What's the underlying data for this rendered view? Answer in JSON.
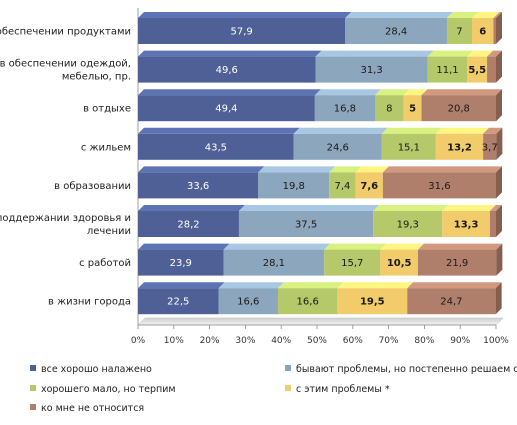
{
  "chart_data": {
    "type": "bar",
    "orientation": "horizontal",
    "stacked": "percent",
    "categories": [
      [
        "в обеспечении продуктами"
      ],
      [
        "в обеспечении одеждой,",
        "мебелью, пр."
      ],
      [
        "в отдыхе"
      ],
      [
        "с жильем"
      ],
      [
        "в образовании"
      ],
      [
        "в поддержании здоровья и",
        "лечении"
      ],
      [
        "с работой"
      ],
      [
        "в жизни города"
      ]
    ],
    "series": [
      {
        "name": "все хорошо налажено",
        "color": "#4e6096",
        "values": [
          57.9,
          49.6,
          49.4,
          43.5,
          33.6,
          28.2,
          23.9,
          22.5
        ],
        "labels": [
          "57,9",
          "49,6",
          "49,4",
          "43,5",
          "33,6",
          "28,2",
          "23,9",
          "22,5"
        ]
      },
      {
        "name": "бывают проблемы, но постепенно решаем сами",
        "color": "#8ca6bd",
        "values": [
          28.4,
          31.3,
          16.8,
          24.6,
          19.8,
          37.5,
          28.1,
          16.6
        ],
        "labels": [
          "28,4",
          "31,3",
          "16,8",
          "24,6",
          "19,8",
          "37,5",
          "28,1",
          "16,6"
        ]
      },
      {
        "name": "хорошего мало, но терпим",
        "color": "#b5c96a",
        "values": [
          7,
          11.1,
          8,
          15.1,
          7.4,
          19.3,
          15.7,
          16.6
        ],
        "labels": [
          "7",
          "11,1",
          "8",
          "15,1",
          "7,4",
          "19,3",
          "15,7",
          "16,6"
        ]
      },
      {
        "name": "с этим проблемы *",
        "color": "#f2cc6b",
        "values": [
          6,
          5.5,
          5,
          13.2,
          7.6,
          13.3,
          10.5,
          19.5
        ],
        "labels": [
          "6",
          "5,5",
          "5",
          "13,2",
          "7,6",
          "13,3",
          "10,5",
          "19,5"
        ]
      },
      {
        "name": "ко мне не относится",
        "color": "#b07f6b",
        "values": [
          0.7,
          2.5,
          20.8,
          3.7,
          31.6,
          1.7,
          21.9,
          24.7
        ],
        "labels": [
          "",
          "",
          "20,8",
          "3,7",
          "31,6",
          "",
          "21,9",
          "24,7"
        ]
      }
    ],
    "xlim": [
      0,
      100
    ],
    "x_ticks": [
      "0%",
      "10%",
      "20%",
      "30%",
      "40%",
      "50%",
      "60%",
      "70%",
      "80%",
      "90%",
      "100%"
    ],
    "grid": false,
    "legend_position": "bottom",
    "title": "",
    "xlabel": "",
    "ylabel": ""
  }
}
